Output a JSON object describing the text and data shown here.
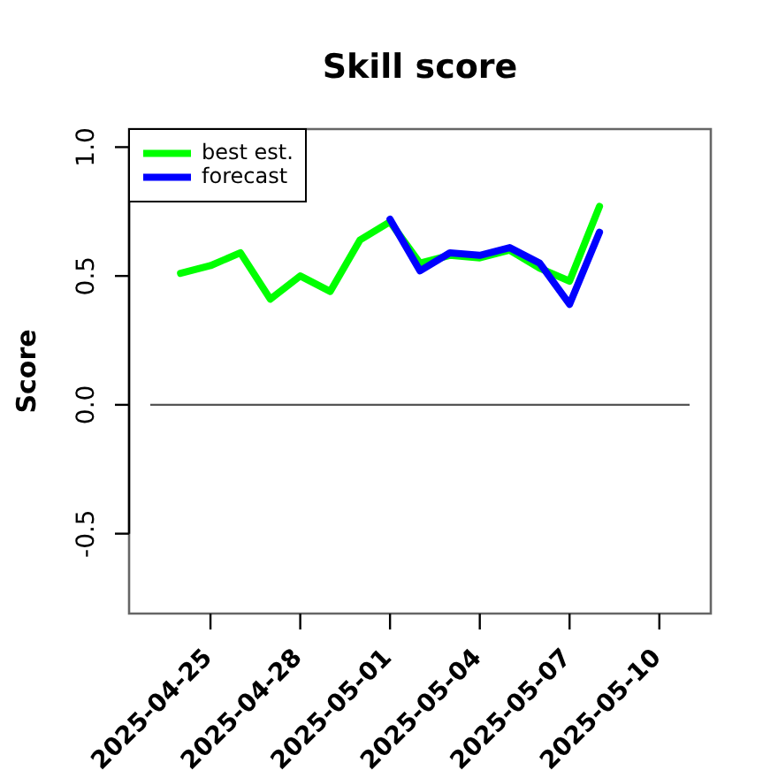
{
  "chart_data": {
    "type": "line",
    "title": "Skill score",
    "ylabel": "Score",
    "xlim": [
      "2025-04-22T06:43",
      "2025-05-11T17:17"
    ],
    "xticks": [
      "2025-04-25",
      "2025-04-28",
      "2025-05-01",
      "2025-05-04",
      "2025-05-07",
      "2025-05-10"
    ],
    "ylim": [
      -0.81,
      1.07
    ],
    "yticks": [
      -0.5,
      {
        "value": 0,
        "label": "0.0"
      },
      0.5,
      {
        "value": 1,
        "label": "1.0"
      }
    ],
    "series": [
      {
        "name": "best est.",
        "color": "#00ff00",
        "x": [
          "2025-04-24",
          "2025-04-25",
          "2025-04-26",
          "2025-04-27",
          "2025-04-28",
          "2025-04-29",
          "2025-04-30",
          "2025-05-01",
          "2025-05-02",
          "2025-05-03",
          "2025-05-04",
          "2025-05-05",
          "2025-05-06",
          "2025-05-07",
          "2025-05-08"
        ],
        "values": [
          0.51,
          0.54,
          0.59,
          0.41,
          0.5,
          0.44,
          0.64,
          0.71,
          0.55,
          0.58,
          0.57,
          0.6,
          0.53,
          0.48,
          0.77
        ]
      },
      {
        "name": "forecast",
        "color": "#0000ff",
        "x": [
          "2025-05-01",
          "2025-05-02",
          "2025-05-03",
          "2025-05-04",
          "2025-05-05",
          "2025-05-06",
          "2025-05-07",
          "2025-05-08"
        ],
        "values": [
          0.72,
          0.52,
          0.59,
          0.58,
          0.61,
          0.55,
          0.39,
          0.67
        ]
      }
    ],
    "ref_lines": [
      {
        "axis": "y",
        "value": 0,
        "color": "#555555"
      }
    ],
    "legend": "top left",
    "marker": "none"
  }
}
